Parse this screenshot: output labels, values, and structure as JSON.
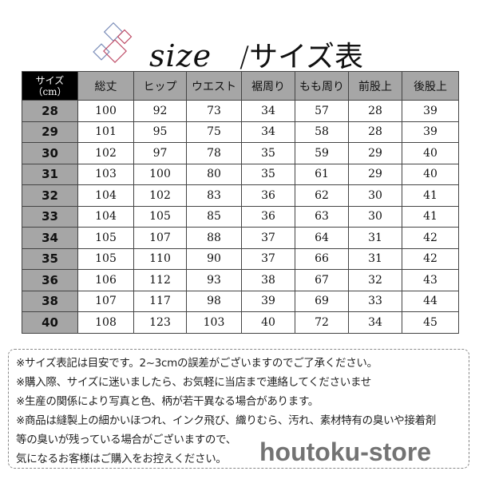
{
  "title": {
    "script": "size",
    "separator": "/",
    "japanese": "サイズ表"
  },
  "table": {
    "corner_label_line1": "サイズ",
    "corner_label_line2": "（cm）",
    "headers": [
      "総丈",
      "ヒップ",
      "ウエスト",
      "裾周り",
      "もも周り",
      "前股上",
      "後股上"
    ],
    "rows": [
      {
        "size": "28",
        "values": [
          "100",
          "92",
          "73",
          "34",
          "57",
          "28",
          "39"
        ]
      },
      {
        "size": "29",
        "values": [
          "101",
          "95",
          "75",
          "34",
          "58",
          "28",
          "39"
        ]
      },
      {
        "size": "30",
        "values": [
          "102",
          "97",
          "78",
          "35",
          "59",
          "29",
          "40"
        ]
      },
      {
        "size": "31",
        "values": [
          "103",
          "100",
          "80",
          "35",
          "61",
          "29",
          "40"
        ]
      },
      {
        "size": "32",
        "values": [
          "104",
          "102",
          "83",
          "36",
          "62",
          "30",
          "41"
        ]
      },
      {
        "size": "33",
        "values": [
          "104",
          "105",
          "85",
          "36",
          "63",
          "30",
          "41"
        ]
      },
      {
        "size": "34",
        "values": [
          "105",
          "107",
          "88",
          "37",
          "64",
          "31",
          "42"
        ]
      },
      {
        "size": "35",
        "values": [
          "105",
          "110",
          "90",
          "37",
          "66",
          "31",
          "42"
        ]
      },
      {
        "size": "36",
        "values": [
          "106",
          "112",
          "93",
          "38",
          "67",
          "32",
          "43"
        ]
      },
      {
        "size": "38",
        "values": [
          "107",
          "117",
          "98",
          "39",
          "69",
          "33",
          "44"
        ]
      },
      {
        "size": "40",
        "values": [
          "108",
          "123",
          "103",
          "40",
          "72",
          "34",
          "45"
        ]
      }
    ]
  },
  "notes": [
    "※サイズ表記は目安です。2~3cmの誤差がございますのでご了承ください。",
    "※購入際、サイズに迷いましたら、お気軽に当店まで連絡してくださいませ",
    "※生産の関係により写真と色、柄が若干異なる場合があります。",
    "※商品は縫製上の細かいほつれ、インク飛び、織りむら、汚れ、素材特有の臭いや接着剤",
    "等の臭いが残っている場合がございますので、",
    "気になるお客様はご購入をお控えください。"
  ],
  "watermark": "houtoku-store",
  "colors": {
    "header_bg": "#a6a6a6",
    "corner_bg": "#000000",
    "logo_blue": "#7a8cb8",
    "logo_red": "#c0506a"
  }
}
